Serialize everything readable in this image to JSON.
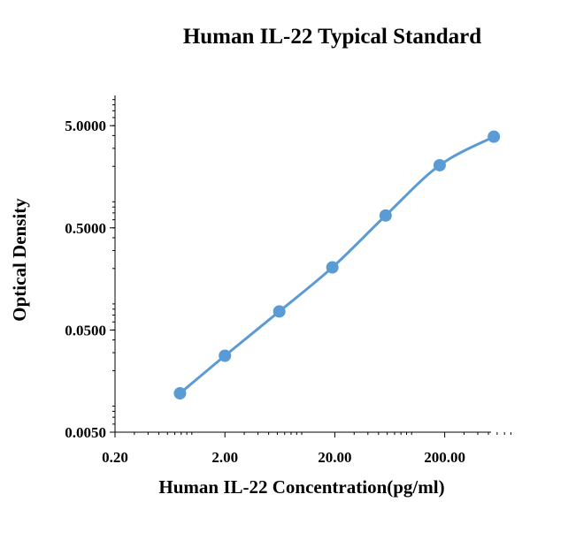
{
  "chart_data": {
    "type": "line",
    "title": "Human IL-22 Typical Standard",
    "xlabel": "Human IL-22 Concentration(pg/ml)",
    "ylabel": "Optical Density",
    "x_scale": "log",
    "y_scale": "log",
    "xlim": [
      0.2,
      800
    ],
    "ylim": [
      0.005,
      10
    ],
    "x_ticks": [
      "0.20",
      "2.00",
      "20.00",
      "200.00"
    ],
    "y_ticks": [
      "0.0050",
      "0.0500",
      "0.5000",
      "5.0000"
    ],
    "series": [
      {
        "color": "#5b9bd5",
        "smooth": true,
        "markers": true,
        "points": [
          {
            "x": 0.78,
            "y": 0.012
          },
          {
            "x": 2.0,
            "y": 0.028
          },
          {
            "x": 6.25,
            "y": 0.076
          },
          {
            "x": 19.0,
            "y": 0.205
          },
          {
            "x": 58.0,
            "y": 0.66
          },
          {
            "x": 180.0,
            "y": 2.05
          },
          {
            "x": 560.0,
            "y": 3.9
          }
        ]
      }
    ],
    "grid": false
  }
}
